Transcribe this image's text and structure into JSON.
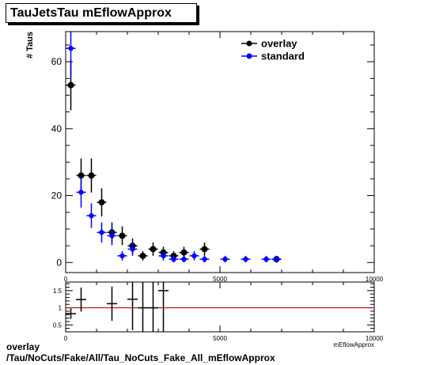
{
  "header": {
    "title": "TauJetsTau mEflowApprox"
  },
  "footer": {
    "line1": "overlay",
    "line2": "/Tau/NoCuts/Fake/All/Tau_NoCuts_Fake_All_mEflowApprox"
  },
  "chart_data": [
    {
      "type": "scatter",
      "title": "TauJetsTau mEflowApprox",
      "ylabel": "# Taus",
      "xlabel": "",
      "xlim": [
        0,
        10000
      ],
      "ylim": [
        -3,
        69
      ],
      "x_ticks": [
        0,
        5000,
        10000
      ],
      "y_ticks": [
        0,
        20,
        40,
        60
      ],
      "legend": {
        "position": "top-right",
        "entries": [
          "overlay",
          "standard"
        ]
      },
      "series": [
        {
          "name": "overlay",
          "color": "#000000",
          "points": [
            {
              "x": 167,
              "y": 53,
              "err": 7.5
            },
            {
              "x": 500,
              "y": 26,
              "err": 5.1
            },
            {
              "x": 833,
              "y": 26,
              "err": 5.1
            },
            {
              "x": 1167,
              "y": 18,
              "err": 4.2
            },
            {
              "x": 1500,
              "y": 9,
              "err": 3
            },
            {
              "x": 1833,
              "y": 8,
              "err": 2.8
            },
            {
              "x": 2167,
              "y": 5,
              "err": 2.2
            },
            {
              "x": 2500,
              "y": 2,
              "err": 1.4
            },
            {
              "x": 2833,
              "y": 4,
              "err": 2
            },
            {
              "x": 3167,
              "y": 3,
              "err": 1.7
            },
            {
              "x": 3500,
              "y": 2,
              "err": 1.4
            },
            {
              "x": 3833,
              "y": 3,
              "err": 1.7
            },
            {
              "x": 4500,
              "y": 4,
              "err": 2
            },
            {
              "x": 6833,
              "y": 1,
              "err": 1
            }
          ]
        },
        {
          "name": "standard",
          "color": "#0000ff",
          "points": [
            {
              "x": 167,
              "y": 64,
              "err": 8
            },
            {
              "x": 500,
              "y": 21,
              "err": 4.6
            },
            {
              "x": 833,
              "y": 14,
              "err": 3.7
            },
            {
              "x": 1167,
              "y": 9,
              "err": 3
            },
            {
              "x": 1500,
              "y": 8,
              "err": 2.8
            },
            {
              "x": 1833,
              "y": 2,
              "err": 1.4
            },
            {
              "x": 2167,
              "y": 4,
              "err": 2
            },
            {
              "x": 3167,
              "y": 2,
              "err": 1.4
            },
            {
              "x": 3500,
              "y": 1,
              "err": 1
            },
            {
              "x": 3833,
              "y": 1,
              "err": 1
            },
            {
              "x": 4167,
              "y": 2,
              "err": 1.4
            },
            {
              "x": 4500,
              "y": 1,
              "err": 1
            },
            {
              "x": 5167,
              "y": 1,
              "err": 1
            },
            {
              "x": 5833,
              "y": 1,
              "err": 1
            },
            {
              "x": 6500,
              "y": 1,
              "err": 1
            },
            {
              "x": 6833,
              "y": 1,
              "err": 1
            }
          ]
        }
      ]
    },
    {
      "type": "scatter",
      "title": "",
      "xlabel": "mEflowApprox",
      "ylabel": "",
      "xlim": [
        0,
        10000
      ],
      "ylim": [
        0.3,
        1.75
      ],
      "x_ticks": [
        0,
        5000,
        10000
      ],
      "y_ticks": [
        0.5,
        1,
        1.5
      ],
      "reference_line": {
        "y": 1,
        "color": "#cc0000"
      },
      "series": [
        {
          "name": "",
          "color": "#000000",
          "points": [
            {
              "x": 167,
              "y": 0.83,
              "err": 0.15,
              "xerr": 167
            },
            {
              "x": 500,
              "y": 1.24,
              "err": 0.35,
              "xerr": 167
            },
            {
              "x": 1500,
              "y": 1.12,
              "err": 0.5,
              "xerr": 167
            },
            {
              "x": 2167,
              "y": 1.25,
              "err": 0.9,
              "xerr": 167
            },
            {
              "x": 2500,
              "y": 1.0,
              "err": 1.5,
              "xerr": 167
            },
            {
              "x": 2833,
              "y": 1.0,
              "err": 1.5,
              "xerr": 167
            },
            {
              "x": 3167,
              "y": 1.5,
              "err": 1.5,
              "xerr": 167
            }
          ]
        }
      ]
    }
  ]
}
